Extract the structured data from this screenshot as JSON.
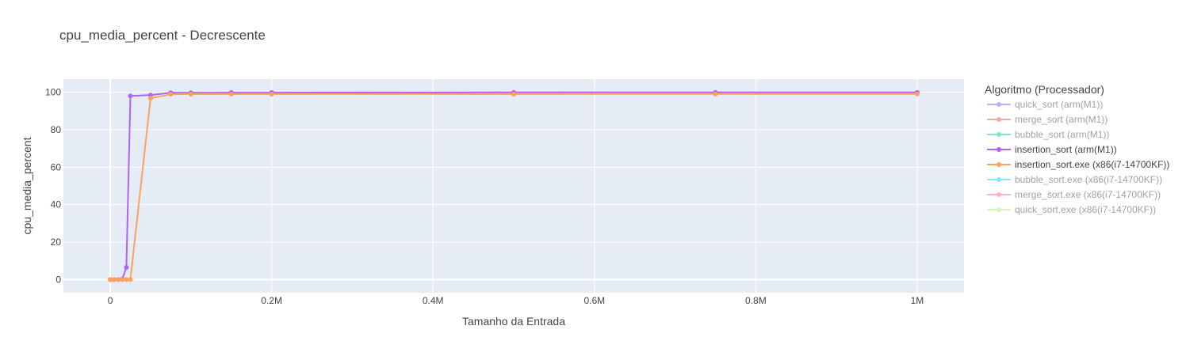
{
  "chart_data": {
    "type": "line",
    "title": "cpu_media_percent - Decrescente",
    "xlabel": "Tamanho da Entrada",
    "ylabel": "cpu_media_percent",
    "xlim": [
      -58000,
      1058000
    ],
    "ylim": [
      -7,
      107
    ],
    "x_ticks": [
      {
        "value": 0,
        "label": "0"
      },
      {
        "value": 200000,
        "label": "0.2M"
      },
      {
        "value": 400000,
        "label": "0.4M"
      },
      {
        "value": 600000,
        "label": "0.6M"
      },
      {
        "value": 800000,
        "label": "0.8M"
      },
      {
        "value": 1000000,
        "label": "1M"
      }
    ],
    "y_ticks": [
      {
        "value": 0,
        "label": "0"
      },
      {
        "value": 20,
        "label": "20"
      },
      {
        "value": 40,
        "label": "40"
      },
      {
        "value": 60,
        "label": "60"
      },
      {
        "value": 80,
        "label": "80"
      },
      {
        "value": 100,
        "label": "100"
      }
    ],
    "grid": true,
    "legend_title": "Algoritmo (Processador)",
    "legend_position": "right",
    "series": [
      {
        "name": "quick_sort (arm(M1))",
        "color": "#636efa",
        "visible": false,
        "x": [],
        "y": []
      },
      {
        "name": "merge_sort (arm(M1))",
        "color": "#ef553b",
        "visible": false,
        "x": [],
        "y": []
      },
      {
        "name": "bubble_sort (arm(M1))",
        "color": "#00cc96",
        "visible": false,
        "x": [],
        "y": []
      },
      {
        "name": "insertion_sort (arm(M1))",
        "color": "#ab63fa",
        "visible": true,
        "x": [
          0,
          1000,
          5000,
          10000,
          15000,
          20000,
          25000,
          50000,
          75000,
          100000,
          150000,
          200000,
          500000,
          750000,
          1000000
        ],
        "y": [
          0,
          0,
          0,
          0,
          0.3,
          6.5,
          98,
          98.5,
          99.7,
          99.7,
          99.8,
          99.8,
          99.9,
          99.9,
          99.9
        ]
      },
      {
        "name": "insertion_sort.exe (x86(i7-14700KF))",
        "color": "#ffa15a",
        "visible": true,
        "x": [
          0,
          1000,
          5000,
          10000,
          15000,
          20000,
          25000,
          50000,
          75000,
          100000,
          150000,
          200000,
          500000,
          750000,
          1000000
        ],
        "y": [
          0,
          0,
          0,
          0,
          0,
          0,
          0,
          96.8,
          98.9,
          99,
          99,
          99,
          99,
          99.1,
          99.1
        ]
      },
      {
        "name": "bubble_sort.exe (x86(i7-14700KF))",
        "color": "#19d3f3",
        "visible": false,
        "x": [],
        "y": []
      },
      {
        "name": "merge_sort.exe (x86(i7-14700KF))",
        "color": "#ff6692",
        "visible": false,
        "x": [],
        "y": []
      },
      {
        "name": "quick_sort.exe (x86(i7-14700KF))",
        "color": "#b6e880",
        "visible": false,
        "x": [],
        "y": []
      }
    ]
  }
}
